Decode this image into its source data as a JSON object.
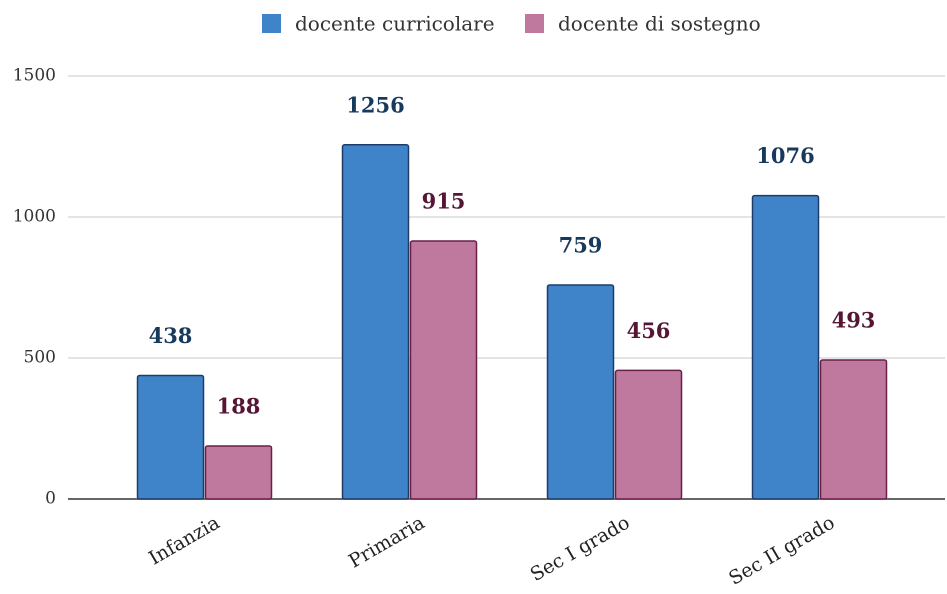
{
  "chart_data": {
    "type": "bar",
    "categories": [
      "Infanzia",
      "Primaria",
      "Sec I grado",
      "Sec II grado"
    ],
    "series": [
      {
        "name": "docente curricolare",
        "color": "#3f83c8",
        "values": [
          438,
          1256,
          759,
          1076
        ]
      },
      {
        "name": "docente di sostegno",
        "color": "#c0799e",
        "values": [
          188,
          915,
          456,
          493
        ]
      }
    ],
    "ylim": [
      0,
      1500
    ],
    "yticks": [
      0,
      500,
      1000,
      1500
    ],
    "grid": true,
    "legend": "top"
  }
}
